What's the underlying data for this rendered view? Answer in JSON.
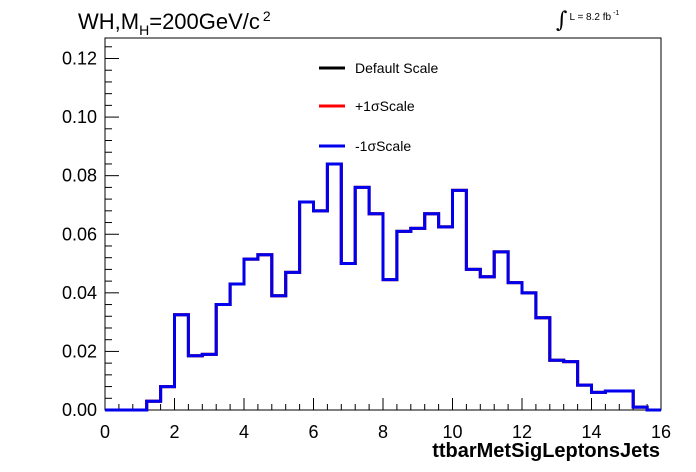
{
  "chart_data": {
    "type": "line",
    "title": "WH,M",
    "title_subscript": "H",
    "title_suffix": "=200GeV/c",
    "title_superscript": "2",
    "luminosity_label": "L = 8.2 fb",
    "luminosity_exponent": "-1",
    "xlabel": "ttbarMetSigLeptonsJets",
    "ylabel": "",
    "xlim": [
      0,
      16
    ],
    "ylim": [
      0,
      0.127
    ],
    "xticks": [
      "0",
      "2",
      "4",
      "6",
      "8",
      "10",
      "12",
      "14",
      "16"
    ],
    "yticks": [
      "0.00",
      "0.02",
      "0.04",
      "0.06",
      "0.08",
      "0.10",
      "0.12"
    ],
    "bin_edges": [
      0,
      0.4,
      0.8,
      1.2,
      1.6,
      2.0,
      2.4,
      2.8,
      3.2,
      3.6,
      4.0,
      4.4,
      4.8,
      5.2,
      5.6,
      6.0,
      6.4,
      6.8,
      7.2,
      7.6,
      8.0,
      8.4,
      8.8,
      9.2,
      9.6,
      10.0,
      10.4,
      10.8,
      11.2,
      11.6,
      12.0,
      12.4,
      12.8,
      13.2,
      13.6,
      14.0,
      14.4,
      14.8,
      15.2,
      15.6,
      16.0
    ],
    "legend_position": "top-center",
    "series": [
      {
        "name": "Default Scale",
        "color": "#000000",
        "values": [
          0,
          0,
          0,
          0.003,
          0.008,
          0.0325,
          0.0185,
          0.019,
          0.036,
          0.043,
          0.0515,
          0.053,
          0.039,
          0.047,
          0.071,
          0.068,
          0.084,
          0.05,
          0.076,
          0.067,
          0.0445,
          0.061,
          0.062,
          0.067,
          0.0625,
          0.075,
          0.048,
          0.0455,
          0.054,
          0.0435,
          0.04,
          0.0315,
          0.017,
          0.0165,
          0.0085,
          0.006,
          0.0065,
          0.0065,
          0.001,
          0,
          0
        ]
      },
      {
        "name": "+1σScale",
        "color": "#ff0000",
        "values": [
          0,
          0,
          0,
          0.003,
          0.008,
          0.0325,
          0.0185,
          0.019,
          0.036,
          0.043,
          0.0515,
          0.053,
          0.039,
          0.047,
          0.071,
          0.068,
          0.084,
          0.05,
          0.076,
          0.067,
          0.0445,
          0.061,
          0.062,
          0.067,
          0.0625,
          0.075,
          0.048,
          0.0455,
          0.054,
          0.0435,
          0.04,
          0.0315,
          0.017,
          0.0165,
          0.0085,
          0.006,
          0.0065,
          0.0065,
          0.001,
          0,
          0
        ]
      },
      {
        "name": "-1σScale",
        "color": "#0000ee",
        "values": [
          0,
          0,
          0,
          0.003,
          0.008,
          0.0325,
          0.0185,
          0.019,
          0.036,
          0.043,
          0.0515,
          0.053,
          0.039,
          0.047,
          0.071,
          0.068,
          0.084,
          0.05,
          0.076,
          0.067,
          0.0445,
          0.061,
          0.062,
          0.067,
          0.0625,
          0.075,
          0.048,
          0.0455,
          0.054,
          0.0435,
          0.04,
          0.0315,
          0.017,
          0.0165,
          0.0085,
          0.006,
          0.0065,
          0.0065,
          0.001,
          0,
          0
        ]
      }
    ]
  }
}
